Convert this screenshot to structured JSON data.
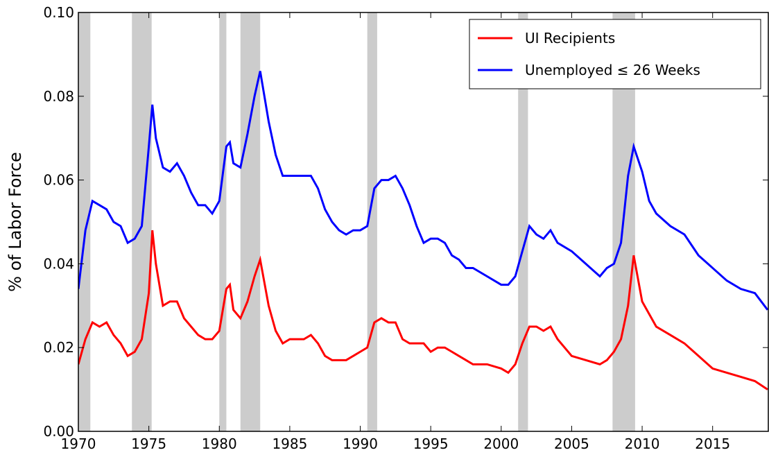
{
  "chart_data": {
    "type": "line",
    "ylabel": "% of Labor Force",
    "xlim": [
      1970,
      2019
    ],
    "xticks": [
      1970,
      1975,
      1980,
      1985,
      1990,
      1995,
      2000,
      2005,
      2010,
      2015
    ],
    "ylim": [
      0,
      0.1
    ],
    "yticks": [
      {
        "value": 0,
        "label": "0.00"
      },
      {
        "value": 0.02,
        "label": "0.02"
      },
      {
        "value": 0.04,
        "label": "0.04"
      },
      {
        "value": 0.06,
        "label": "0.06"
      },
      {
        "value": 0.08,
        "label": "0.08"
      },
      {
        "value": 0.1,
        "label": "0.10"
      }
    ],
    "legend": "upper right",
    "recession_color": "#cccccc",
    "recessions": [
      [
        1970.0,
        1970.85
      ],
      [
        1973.8,
        1975.2
      ],
      [
        1980.0,
        1980.5
      ],
      [
        1981.5,
        1982.9
      ],
      [
        1990.5,
        1991.2
      ],
      [
        2001.2,
        2001.9
      ],
      [
        2007.9,
        2009.5
      ]
    ],
    "x": [
      1970.0,
      1970.5,
      1971.0,
      1971.5,
      1972.0,
      1972.5,
      1973.0,
      1973.5,
      1974.0,
      1974.5,
      1975.0,
      1975.25,
      1975.5,
      1976.0,
      1976.5,
      1977.0,
      1977.5,
      1978.0,
      1978.5,
      1979.0,
      1979.5,
      1980.0,
      1980.5,
      1980.75,
      1981.0,
      1981.5,
      1982.0,
      1982.5,
      1982.9,
      1983.5,
      1984.0,
      1984.5,
      1985.0,
      1986.0,
      1986.5,
      1987.0,
      1987.5,
      1988.0,
      1988.5,
      1989.0,
      1989.5,
      1990.0,
      1990.5,
      1991.0,
      1991.5,
      1992.0,
      1992.5,
      1993.0,
      1993.5,
      1994.0,
      1994.5,
      1995.0,
      1995.5,
      1996.0,
      1996.5,
      1997.0,
      1997.5,
      1998.0,
      1999.0,
      2000.0,
      2000.5,
      2001.0,
      2001.5,
      2002.0,
      2002.5,
      2003.0,
      2003.5,
      2004.0,
      2005.0,
      2006.0,
      2007.0,
      2007.5,
      2008.0,
      2008.5,
      2009.0,
      2009.4,
      2010.0,
      2010.5,
      2011.0,
      2012.0,
      2013.0,
      2014.0,
      2015.0,
      2016.0,
      2017.0,
      2018.0,
      2018.9
    ],
    "series": [
      {
        "name": "UI Recipients",
        "color": "#ff0000",
        "values": [
          0.016,
          0.022,
          0.026,
          0.025,
          0.026,
          0.023,
          0.021,
          0.018,
          0.019,
          0.022,
          0.033,
          0.048,
          0.04,
          0.03,
          0.031,
          0.031,
          0.027,
          0.025,
          0.023,
          0.022,
          0.022,
          0.024,
          0.034,
          0.035,
          0.029,
          0.027,
          0.031,
          0.037,
          0.041,
          0.03,
          0.024,
          0.021,
          0.022,
          0.022,
          0.023,
          0.021,
          0.018,
          0.017,
          0.017,
          0.017,
          0.018,
          0.019,
          0.02,
          0.026,
          0.027,
          0.026,
          0.026,
          0.022,
          0.021,
          0.021,
          0.021,
          0.019,
          0.02,
          0.02,
          0.019,
          0.018,
          0.017,
          0.016,
          0.016,
          0.015,
          0.014,
          0.016,
          0.021,
          0.025,
          0.025,
          0.024,
          0.025,
          0.022,
          0.018,
          0.017,
          0.016,
          0.017,
          0.019,
          0.022,
          0.03,
          0.042,
          0.031,
          0.028,
          0.025,
          0.023,
          0.021,
          0.018,
          0.015,
          0.014,
          0.013,
          0.012,
          0.01
        ]
      },
      {
        "name": "Unemployed ≤ 26 Weeks",
        "color": "#0000ff",
        "values": [
          0.034,
          0.048,
          0.055,
          0.054,
          0.053,
          0.05,
          0.049,
          0.045,
          0.046,
          0.049,
          0.068,
          0.078,
          0.07,
          0.063,
          0.062,
          0.064,
          0.061,
          0.057,
          0.054,
          0.054,
          0.052,
          0.055,
          0.068,
          0.069,
          0.064,
          0.063,
          0.071,
          0.08,
          0.086,
          0.074,
          0.066,
          0.061,
          0.061,
          0.061,
          0.061,
          0.058,
          0.053,
          0.05,
          0.048,
          0.047,
          0.048,
          0.048,
          0.049,
          0.058,
          0.06,
          0.06,
          0.061,
          0.058,
          0.054,
          0.049,
          0.045,
          0.046,
          0.046,
          0.045,
          0.042,
          0.041,
          0.039,
          0.039,
          0.037,
          0.035,
          0.035,
          0.037,
          0.043,
          0.049,
          0.047,
          0.046,
          0.048,
          0.045,
          0.043,
          0.04,
          0.037,
          0.039,
          0.04,
          0.045,
          0.061,
          0.068,
          0.062,
          0.055,
          0.052,
          0.049,
          0.047,
          0.042,
          0.039,
          0.036,
          0.034,
          0.033,
          0.029
        ]
      }
    ]
  }
}
